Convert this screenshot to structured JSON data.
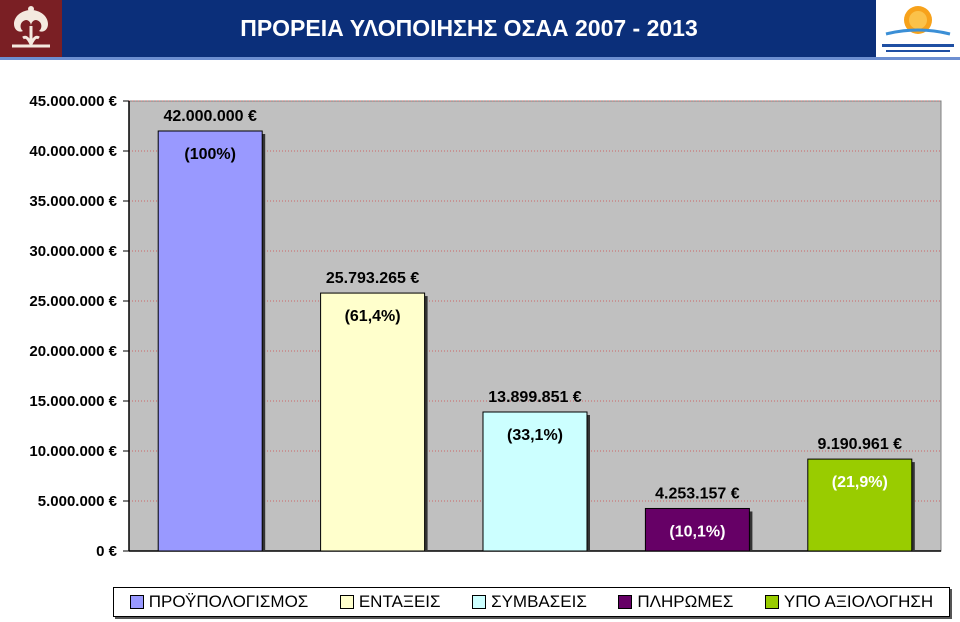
{
  "header": {
    "title": "ΠΡΟΡΕΙΑ ΥΛΟΠΟΙΗΣΗΣ ΟΣΑΑ 2007 - 2013"
  },
  "logos": {
    "left": "ornament-logo",
    "right": "sun-logo"
  },
  "chart_data": {
    "type": "bar",
    "categories": [
      "ΠΡΟΫΠΟΛΟΓΙΣΜΟΣ",
      "ΕΝΤΑΞΕΙΣ",
      "ΣΥΜΒΑΣΕΙΣ",
      "ΠΛΗΡΩΜΕΣ",
      "ΥΠΟ ΑΞΙΟΛΟΓΗΣΗ"
    ],
    "values": [
      42000000,
      25793265,
      13899851,
      4253157,
      9190961
    ],
    "value_labels": [
      "42.000.000 €",
      "25.793.265 €",
      "13.899.851 €",
      "4.253.157 €",
      "9.190.961 €"
    ],
    "percent_labels": [
      "(100%)",
      "(61,4%)",
      "(33,1%)",
      "(10,1%)",
      "(21,9%)"
    ],
    "colors": [
      "#9999ff",
      "#ffffcc",
      "#ccffff",
      "#660066",
      "#99cc00"
    ],
    "percent_colors": [
      "#000000",
      "#000000",
      "#000000",
      "#ffffff",
      "#ffffff"
    ],
    "ylim": [
      0,
      45000000
    ],
    "yticks": [
      0,
      5000000,
      10000000,
      15000000,
      20000000,
      25000000,
      30000000,
      35000000,
      40000000,
      45000000
    ],
    "ytick_labels": [
      "0 €",
      "5.000.000 €",
      "10.000.000 €",
      "15.000.000 €",
      "20.000.000 €",
      "25.000.000 €",
      "30.000.000 €",
      "35.000.000 €",
      "40.000.000 €",
      "45.000.000 €"
    ],
    "plot_background": "#c0c0c0",
    "grid": true,
    "legend": "bottom"
  }
}
